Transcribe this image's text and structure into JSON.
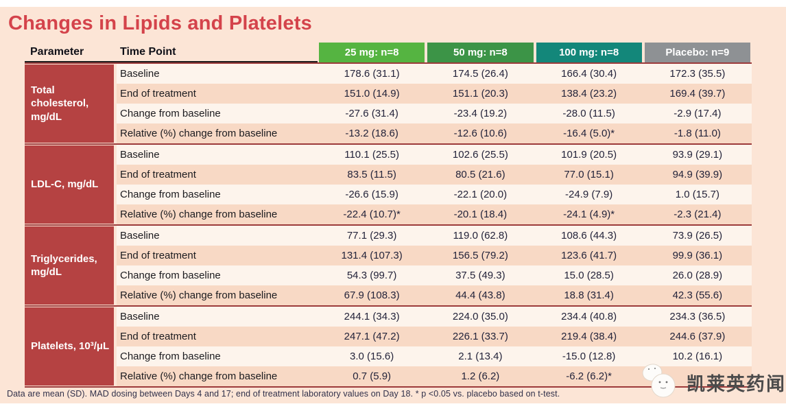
{
  "title": "Changes in Lipids and Platelets",
  "colors": {
    "panel_bg": "#fce5d6",
    "title_red": "#d4434b",
    "param_block_red": "#b54242",
    "section_divider_red": "#9c3a3a",
    "row_light": "#fdf4ec",
    "row_dark": "#f8d9c5"
  },
  "table": {
    "param_header": "Parameter",
    "timepoint_header": "Time Point",
    "dose_columns": [
      {
        "label": "25 mg: n=8",
        "color": "#55b441"
      },
      {
        "label": "50 mg: n=8",
        "color": "#3c9447"
      },
      {
        "label": "100 mg: n=8",
        "color": "#13877a"
      },
      {
        "label": "Placebo: n=9",
        "color": "#8e9194"
      }
    ],
    "sections": [
      {
        "parameter": "Total cholesterol, mg/dL",
        "rows": [
          {
            "timepoint": "Baseline",
            "values": [
              "178.6 (31.1)",
              "174.5 (26.4)",
              "166.4 (30.4)",
              "172.3 (35.5)"
            ]
          },
          {
            "timepoint": "End of treatment",
            "values": [
              "151.0 (14.9)",
              "151.1 (20.3)",
              "138.4 (23.2)",
              "169.4 (39.7)"
            ]
          },
          {
            "timepoint": "Change from baseline",
            "values": [
              "-27.6 (31.4)",
              "-23.4 (19.2)",
              "-28.0 (11.5)",
              "-2.9 (17.4)"
            ]
          },
          {
            "timepoint": "Relative (%) change from baseline",
            "values": [
              "-13.2 (18.6)",
              "-12.6 (10.6)",
              "-16.4 (5.0)*",
              "-1.8 (11.0)"
            ]
          }
        ]
      },
      {
        "parameter": "LDL-C, mg/dL",
        "rows": [
          {
            "timepoint": "Baseline",
            "values": [
              "110.1 (25.5)",
              "102.6 (25.5)",
              "101.9 (20.5)",
              "93.9 (29.1)"
            ]
          },
          {
            "timepoint": "End of treatment",
            "values": [
              "83.5 (11.5)",
              "80.5 (21.6)",
              "77.0 (15.1)",
              "94.9 (39.9)"
            ]
          },
          {
            "timepoint": "Change from baseline",
            "values": [
              "-26.6 (15.9)",
              "-22.1 (20.0)",
              "-24.9 (7.9)",
              "1.0 (15.7)"
            ]
          },
          {
            "timepoint": "Relative (%) change from baseline",
            "values": [
              "-22.4 (10.7)*",
              "-20.1 (18.4)",
              "-24.1 (4.9)*",
              "-2.3 (21.4)"
            ]
          }
        ]
      },
      {
        "parameter": "Triglycerides, mg/dL",
        "rows": [
          {
            "timepoint": "Baseline",
            "values": [
              "77.1 (29.3)",
              "119.0 (62.8)",
              "108.6 (44.3)",
              "73.9 (26.5)"
            ]
          },
          {
            "timepoint": "End of treatment",
            "values": [
              "131.4 (107.3)",
              "156.5 (79.2)",
              "123.6 (41.7)",
              "99.9 (36.1)"
            ]
          },
          {
            "timepoint": "Change from baseline",
            "values": [
              "54.3 (99.7)",
              "37.5 (49.3)",
              "15.0 (28.5)",
              "26.0 (28.9)"
            ]
          },
          {
            "timepoint": "Relative (%) change from baseline",
            "values": [
              "67.9 (108.3)",
              "44.4 (43.8)",
              "18.8 (31.4)",
              "42.3 (55.6)"
            ]
          }
        ]
      },
      {
        "parameter": "Platelets, 10³/μL",
        "rows": [
          {
            "timepoint": "Baseline",
            "values": [
              "244.1 (34.3)",
              "224.0 (35.0)",
              "234.4 (40.8)",
              "234.3 (36.5)"
            ]
          },
          {
            "timepoint": "End of treatment",
            "values": [
              "247.1 (47.2)",
              "226.1 (33.7)",
              "219.4 (38.4)",
              "244.6 (37.9)"
            ]
          },
          {
            "timepoint": "Change from baseline",
            "values": [
              "3.0 (15.6)",
              "2.1 (13.4)",
              "-15.0 (12.8)",
              "10.2 (16.1)"
            ]
          },
          {
            "timepoint": "Relative (%) change from baseline",
            "values": [
              "0.7 (5.9)",
              "1.2 (6.2)",
              "-6.2 (6.2)*",
              ""
            ]
          }
        ]
      }
    ]
  },
  "footnote": "Data are mean (SD). MAD dosing between Days 4 and 17; end of treatment laboratory values on Day 18. * p <0.05 vs. placebo based on t-test.",
  "watermark": {
    "text": "凯莱英药闻"
  }
}
